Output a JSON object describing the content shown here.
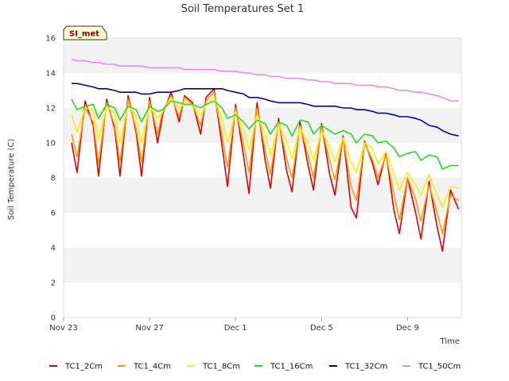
{
  "chart_data": {
    "type": "line",
    "title": "Soil Temperatures Set 1",
    "xlabel": "Time",
    "ylabel": "Soil Temperature (C)",
    "ylim": [
      0,
      16
    ],
    "yticks": [
      0,
      2,
      4,
      6,
      8,
      10,
      12,
      14,
      16
    ],
    "xlim": [
      "Nov 23",
      "Dec 11 12:00"
    ],
    "xticks": [
      "Nov 23",
      "Nov 27",
      "Dec 1",
      "Dec 5",
      "Dec 9"
    ],
    "grid": "alternating horizontal bands",
    "legend_position": "bottom",
    "badge": "SI_met",
    "x": [
      "Nov 23 09:00",
      "Nov 23 15:00",
      "Nov 24 00:00",
      "Nov 24 09:00",
      "Nov 24 15:00",
      "Nov 25 00:00",
      "Nov 25 09:00",
      "Nov 25 15:00",
      "Nov 26 00:00",
      "Nov 26 09:00",
      "Nov 26 15:00",
      "Nov 27 00:00",
      "Nov 27 09:00",
      "Nov 27 15:00",
      "Nov 28 00:00",
      "Nov 28 09:00",
      "Nov 28 15:00",
      "Nov 29 00:00",
      "Nov 29 09:00",
      "Nov 29 15:00",
      "Nov 30 00:00",
      "Nov 30 09:00",
      "Nov 30 15:00",
      "Dec 1 00:00",
      "Dec 1 09:00",
      "Dec 1 15:00",
      "Dec 2 00:00",
      "Dec 2 09:00",
      "Dec 2 15:00",
      "Dec 3 00:00",
      "Dec 3 09:00",
      "Dec 3 15:00",
      "Dec 4 00:00",
      "Dec 4 09:00",
      "Dec 4 15:00",
      "Dec 5 00:00",
      "Dec 5 09:00",
      "Dec 5 15:00",
      "Dec 6 00:00",
      "Dec 6 09:00",
      "Dec 6 15:00",
      "Dec 7 00:00",
      "Dec 7 09:00",
      "Dec 7 15:00",
      "Dec 8 00:00",
      "Dec 8 09:00",
      "Dec 8 15:00",
      "Dec 9 00:00",
      "Dec 9 09:00",
      "Dec 9 15:00",
      "Dec 10 00:00",
      "Dec 10 09:00",
      "Dec 10 15:00",
      "Dec 11 00:00",
      "Dec 11 09:00"
    ],
    "series": [
      {
        "name": "TC1_2Cm",
        "color": "#dd0000",
        "values": [
          10.0,
          8.3,
          12.4,
          11.0,
          8.1,
          12.5,
          10.8,
          8.1,
          12.7,
          10.6,
          8.1,
          12.6,
          10.0,
          11.7,
          12.9,
          11.2,
          12.7,
          12.3,
          10.5,
          12.6,
          13.1,
          9.8,
          7.5,
          12.2,
          9.2,
          7.1,
          12.3,
          9.0,
          7.4,
          11.4,
          8.4,
          7.2,
          11.2,
          8.7,
          7.3,
          11.1,
          8.2,
          7.0,
          10.4,
          6.3,
          5.7,
          10.1,
          8.8,
          7.6,
          9.4,
          6.1,
          4.8,
          8.0,
          6.0,
          4.5,
          7.8,
          5.2,
          3.8,
          7.3,
          6.2
        ]
      },
      {
        "name": "TC1_4Cm",
        "color": "#ff9900",
        "values": [
          10.5,
          9.2,
          12.0,
          11.2,
          8.8,
          12.3,
          11.0,
          8.9,
          12.5,
          10.8,
          8.9,
          12.4,
          10.5,
          11.9,
          12.7,
          11.5,
          12.6,
          12.2,
          11.0,
          12.4,
          12.9,
          10.4,
          8.6,
          12.0,
          9.9,
          8.3,
          12.0,
          9.6,
          8.2,
          11.2,
          9.1,
          8.0,
          11.0,
          9.3,
          8.0,
          10.9,
          9.0,
          7.9,
          10.3,
          7.5,
          6.7,
          10.0,
          9.0,
          8.0,
          9.3,
          7.0,
          5.6,
          8.0,
          6.8,
          5.5,
          7.6,
          6.0,
          4.8,
          7.0,
          6.7
        ]
      },
      {
        "name": "TC1_8Cm",
        "color": "#ffee00",
        "values": [
          11.6,
          10.6,
          12.0,
          11.9,
          10.2,
          12.1,
          11.7,
          10.0,
          12.2,
          11.5,
          10.0,
          12.1,
          11.4,
          11.8,
          12.6,
          12.0,
          12.3,
          12.2,
          11.6,
          12.2,
          12.6,
          11.4,
          10.0,
          11.8,
          10.8,
          9.6,
          11.6,
          10.5,
          9.3,
          11.1,
          10.1,
          9.1,
          10.9,
          10.0,
          9.0,
          10.7,
          9.8,
          8.9,
          10.3,
          8.9,
          8.3,
          10.0,
          9.7,
          8.8,
          9.5,
          8.2,
          7.3,
          8.3,
          7.6,
          7.0,
          8.2,
          7.0,
          6.3,
          7.5,
          7.4
        ]
      },
      {
        "name": "TC1_16Cm",
        "color": "#22dd22",
        "values": [
          12.5,
          11.9,
          12.1,
          12.2,
          11.4,
          12.2,
          12.0,
          11.3,
          12.1,
          11.9,
          11.2,
          12.1,
          11.8,
          11.9,
          12.4,
          12.3,
          12.2,
          12.2,
          12.0,
          12.2,
          12.4,
          12.0,
          11.4,
          11.6,
          11.2,
          10.8,
          11.3,
          11.1,
          10.5,
          11.2,
          11.0,
          10.4,
          11.3,
          11.2,
          10.5,
          11.0,
          10.7,
          10.5,
          10.7,
          10.5,
          10.0,
          10.5,
          10.4,
          10.0,
          10.1,
          9.7,
          9.2,
          9.4,
          9.5,
          9.0,
          9.3,
          9.2,
          8.5,
          8.7,
          8.7
        ]
      },
      {
        "name": "TC1_32Cm",
        "color": "#0000bb",
        "values": [
          13.4,
          13.4,
          13.3,
          13.2,
          13.1,
          13.1,
          13.0,
          12.9,
          12.9,
          12.9,
          12.8,
          12.8,
          12.9,
          12.9,
          12.9,
          13.0,
          13.1,
          13.1,
          13.1,
          13.1,
          13.1,
          13.1,
          13.0,
          12.9,
          12.8,
          12.6,
          12.6,
          12.5,
          12.4,
          12.3,
          12.3,
          12.3,
          12.3,
          12.2,
          12.1,
          12.1,
          12.1,
          12.1,
          12.0,
          12.0,
          11.9,
          11.9,
          11.8,
          11.7,
          11.7,
          11.6,
          11.5,
          11.5,
          11.4,
          11.3,
          11.0,
          10.9,
          10.7,
          10.5,
          10.4
        ]
      },
      {
        "name": "TC1_50Cm",
        "color": "#ee88ee",
        "values": [
          14.8,
          14.7,
          14.7,
          14.6,
          14.6,
          14.5,
          14.5,
          14.4,
          14.4,
          14.4,
          14.4,
          14.3,
          14.3,
          14.3,
          14.3,
          14.3,
          14.2,
          14.2,
          14.2,
          14.2,
          14.2,
          14.1,
          14.1,
          14.1,
          14.0,
          14.0,
          13.9,
          13.9,
          13.8,
          13.8,
          13.7,
          13.7,
          13.7,
          13.6,
          13.6,
          13.5,
          13.5,
          13.4,
          13.4,
          13.4,
          13.3,
          13.3,
          13.3,
          13.2,
          13.2,
          13.1,
          13.0,
          13.0,
          12.9,
          12.9,
          12.8,
          12.7,
          12.6,
          12.4,
          12.4
        ]
      }
    ]
  }
}
